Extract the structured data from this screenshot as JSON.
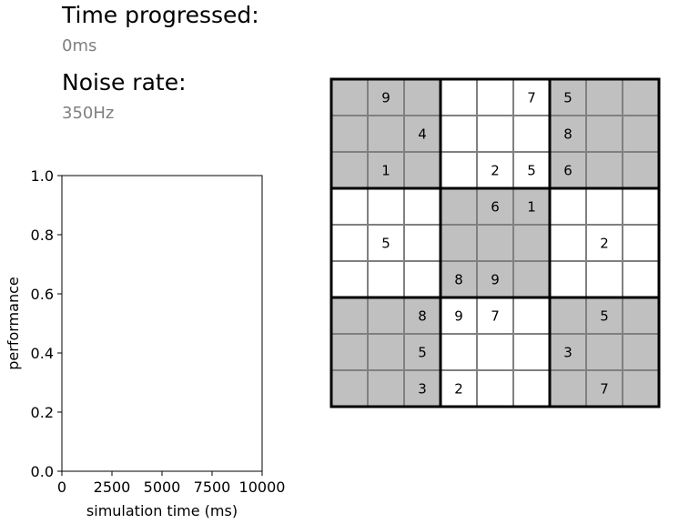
{
  "status": {
    "time_label": "Time progressed:",
    "time_value": "0ms",
    "noise_label": "Noise rate:",
    "noise_value": "350Hz"
  },
  "chart_data": {
    "type": "line",
    "title": "",
    "xlabel": "simulation time (ms)",
    "ylabel": "performance",
    "xlim": [
      0,
      10000
    ],
    "ylim": [
      0,
      1
    ],
    "x_ticks": [
      0,
      2500,
      5000,
      7500,
      10000
    ],
    "y_ticks": [
      0.0,
      0.2,
      0.4,
      0.6,
      0.8,
      1.0
    ],
    "x_tick_labels": [
      "0",
      "2500",
      "5000",
      "7500",
      "10000"
    ],
    "y_tick_labels": [
      "0.0",
      "0.2",
      "0.4",
      "0.6",
      "0.8",
      "1.0"
    ],
    "grid": false,
    "series": [
      {
        "x": [],
        "y": []
      }
    ]
  },
  "sudoku": {
    "cells": [
      [
        0,
        9,
        0,
        0,
        0,
        7,
        5,
        0,
        0
      ],
      [
        0,
        0,
        4,
        0,
        0,
        0,
        8,
        0,
        0
      ],
      [
        0,
        1,
        0,
        0,
        2,
        5,
        6,
        0,
        0
      ],
      [
        0,
        0,
        0,
        0,
        6,
        1,
        0,
        0,
        0
      ],
      [
        0,
        5,
        0,
        0,
        0,
        0,
        0,
        2,
        0
      ],
      [
        0,
        0,
        0,
        8,
        9,
        0,
        0,
        0,
        0
      ],
      [
        0,
        0,
        8,
        9,
        7,
        0,
        0,
        5,
        0
      ],
      [
        0,
        0,
        5,
        0,
        0,
        0,
        3,
        0,
        0
      ],
      [
        0,
        0,
        3,
        2,
        0,
        0,
        0,
        7,
        0
      ]
    ],
    "shaded_color": "#c0c0c0",
    "plain_color": "#ffffff",
    "grid_line_color": "#808080",
    "box_line_color": "#000000"
  }
}
